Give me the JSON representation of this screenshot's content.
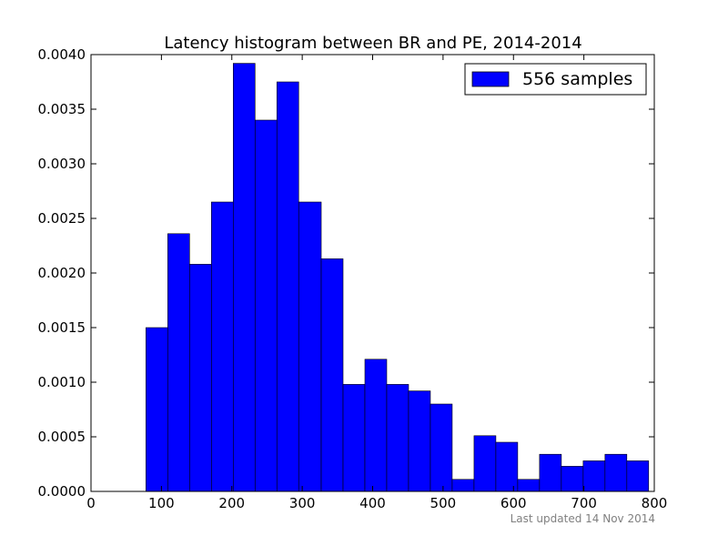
{
  "chart_data": {
    "type": "bar",
    "title": "Latency histogram between BR and PE, 2014-2014",
    "xlabel": "",
    "ylabel": "",
    "xlim": [
      0,
      800
    ],
    "ylim": [
      0,
      0.004
    ],
    "x_ticks": [
      0,
      100,
      200,
      300,
      400,
      500,
      600,
      700,
      800
    ],
    "x_tick_labels": [
      "0",
      "100",
      "200",
      "300",
      "400",
      "500",
      "600",
      "700",
      "800"
    ],
    "y_ticks": [
      0,
      0.0005,
      0.001,
      0.0015,
      0.002,
      0.0025,
      0.003,
      0.0035,
      0.004
    ],
    "y_tick_labels": [
      "0.0000",
      "0.0005",
      "0.0010",
      "0.0015",
      "0.0020",
      "0.0025",
      "0.0030",
      "0.0035",
      "0.0040"
    ],
    "grid": false,
    "legend_position": "top-right",
    "series": [
      {
        "name": "556 samples",
        "color": "#0000ff",
        "bin_edges": [
          78,
          109,
          140,
          171,
          202,
          233,
          264,
          295,
          327,
          358,
          389,
          420,
          451,
          482,
          513,
          544,
          575,
          606,
          637,
          668,
          699,
          730,
          761,
          792
        ],
        "values": [
          0.0015,
          0.00236,
          0.00208,
          0.00265,
          0.00392,
          0.0034,
          0.00375,
          0.00265,
          0.00213,
          0.00098,
          0.00121,
          0.00098,
          0.00092,
          0.0008,
          0.00011,
          0.00051,
          0.00045,
          0.00011,
          0.00034,
          0.00023,
          0.00028,
          0.00034,
          0.00028
        ]
      }
    ]
  },
  "footer": {
    "last_updated": "Last updated 14 Nov 2014"
  }
}
